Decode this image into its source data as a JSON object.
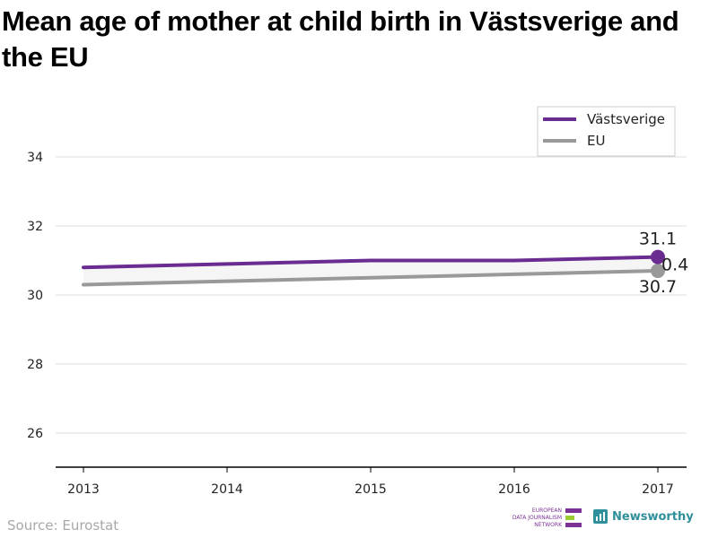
{
  "chart_data": {
    "type": "line",
    "title": "Mean age of mother at child birth in Västsverige and the EU",
    "x": [
      "2013",
      "2014",
      "2015",
      "2016",
      "2017"
    ],
    "series": [
      {
        "name": "Västsverige",
        "values": [
          30.8,
          30.9,
          31.0,
          31.0,
          31.1
        ],
        "color": "#6b2c91"
      },
      {
        "name": "EU",
        "values": [
          30.3,
          30.4,
          30.5,
          30.6,
          30.7
        ],
        "color": "#999999"
      }
    ],
    "ylim": [
      25,
      35
    ],
    "yticks": [
      26,
      28,
      30,
      32,
      34
    ],
    "grid": true,
    "legend": "top-right",
    "annotations": [
      "31.1",
      "0.4",
      "30.7"
    ],
    "source": "Source: Eurostat"
  },
  "branding": {
    "edjn_lines": [
      "EUROPEAN",
      "DATA JOURNALISM",
      "NETWORK"
    ],
    "newsworthy": "Newsworthy"
  }
}
